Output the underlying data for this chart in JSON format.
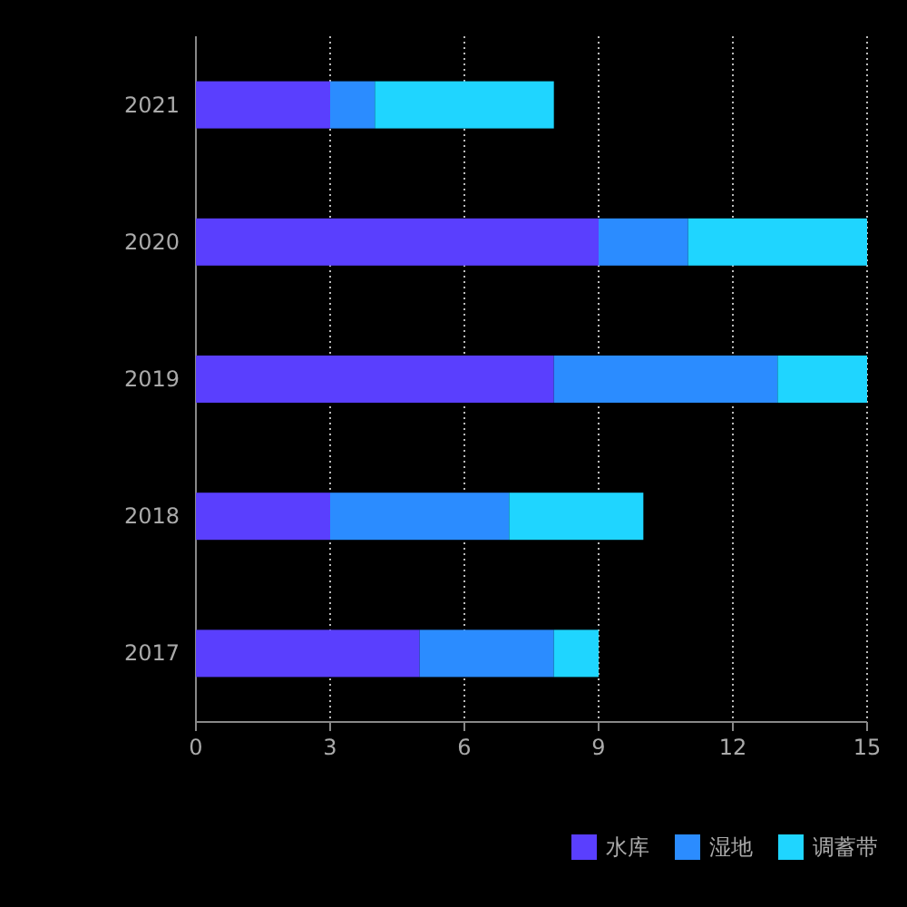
{
  "chart_data": {
    "type": "bar",
    "orientation": "horizontal",
    "stacked": true,
    "categories": [
      "2021",
      "2020",
      "2019",
      "2018",
      "2017"
    ],
    "series": [
      {
        "name": "水库",
        "color": "#5a3ffe",
        "values": [
          3,
          9,
          8,
          3,
          5
        ]
      },
      {
        "name": "湿地",
        "color": "#2b8cff",
        "values": [
          1,
          2,
          5,
          4,
          3
        ]
      },
      {
        "name": "调蓄带",
        "color": "#1fd5ff",
        "values": [
          4,
          4,
          2,
          3,
          1
        ]
      }
    ],
    "xlim": [
      0,
      15
    ],
    "xticks": [
      0,
      3,
      6,
      9,
      12,
      15
    ],
    "grid": "x",
    "legend": "bottom right"
  }
}
